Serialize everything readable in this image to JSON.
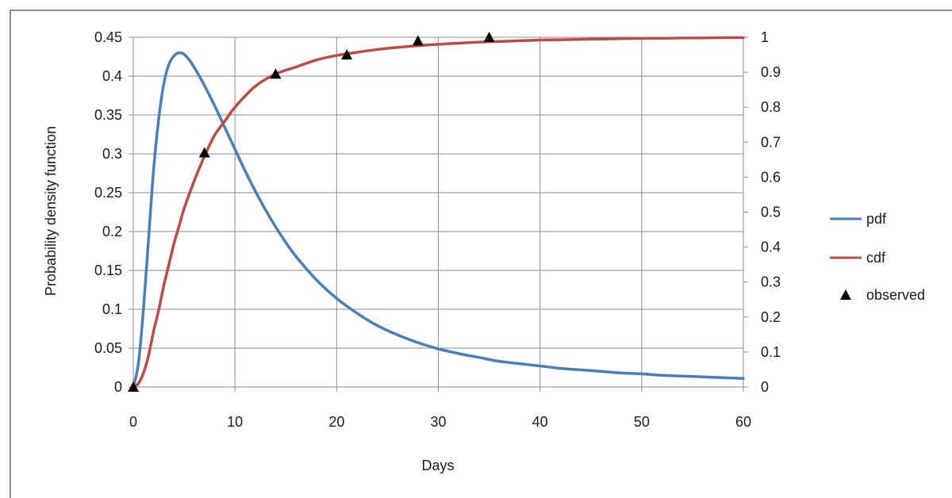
{
  "chart_data": {
    "type": "line",
    "title": "",
    "xlabel": "Days",
    "ylabel": "Probability density function",
    "y2label": "",
    "xlim": [
      0,
      60
    ],
    "ylim": [
      0,
      0.45
    ],
    "y2lim": [
      0,
      1
    ],
    "xticks": [
      "0",
      "10",
      "20",
      "30",
      "40",
      "50",
      "60"
    ],
    "yticks": [
      "0",
      "0.05",
      "0.1",
      "0.15",
      "0.2",
      "0.25",
      "0.3",
      "0.35",
      "0.4",
      "0.45"
    ],
    "y2ticks": [
      "0",
      "0.1",
      "0.2",
      "0.3",
      "0.4",
      "0.5",
      "0.6",
      "0.7",
      "0.8",
      "0.9",
      "1"
    ],
    "grid": true,
    "legend_position": "right",
    "series": [
      {
        "name": "pdf",
        "axis": "left",
        "kind": "line",
        "color": "#4a7ebb",
        "x": [
          0,
          0.5,
          1,
          1.5,
          2,
          2.5,
          3,
          3.5,
          4,
          4.5,
          5,
          5.5,
          6,
          6.5,
          7,
          8,
          9,
          10,
          11,
          12,
          13,
          14,
          15,
          16,
          18,
          20,
          22,
          24,
          26,
          28,
          30,
          32,
          34,
          36,
          38,
          40,
          42,
          44,
          46,
          48,
          50,
          52,
          54,
          56,
          58,
          60
        ],
        "y": [
          0,
          0.03,
          0.1,
          0.19,
          0.28,
          0.345,
          0.39,
          0.415,
          0.426,
          0.43,
          0.428,
          0.421,
          0.411,
          0.4,
          0.388,
          0.362,
          0.334,
          0.306,
          0.278,
          0.252,
          0.228,
          0.206,
          0.186,
          0.168,
          0.138,
          0.114,
          0.095,
          0.079,
          0.067,
          0.057,
          0.049,
          0.043,
          0.038,
          0.033,
          0.03,
          0.027,
          0.024,
          0.022,
          0.02,
          0.018,
          0.017,
          0.015,
          0.014,
          0.013,
          0.012,
          0.011
        ]
      },
      {
        "name": "cdf",
        "axis": "right",
        "kind": "line",
        "color": "#be4b48",
        "x": [
          0,
          0.5,
          1,
          1.5,
          2,
          2.5,
          3,
          3.5,
          4,
          4.5,
          5,
          6,
          7,
          8,
          9,
          10,
          12,
          14,
          16,
          18,
          20,
          22,
          24,
          26,
          28,
          30,
          32,
          34,
          36,
          38,
          40,
          42,
          44,
          46,
          48,
          50,
          52,
          54,
          56,
          58,
          60
        ],
        "y": [
          0,
          0.01,
          0.04,
          0.09,
          0.16,
          0.22,
          0.29,
          0.35,
          0.41,
          0.46,
          0.51,
          0.59,
          0.66,
          0.72,
          0.76,
          0.8,
          0.86,
          0.895,
          0.915,
          0.935,
          0.948,
          0.957,
          0.965,
          0.971,
          0.976,
          0.98,
          0.983,
          0.986,
          0.988,
          0.99,
          0.992,
          0.993,
          0.994,
          0.995,
          0.996,
          0.997,
          0.997,
          0.998,
          0.998,
          0.999,
          0.999
        ]
      },
      {
        "name": "observed",
        "axis": "right",
        "kind": "scatter",
        "marker": "triangle",
        "color": "#000000",
        "x": [
          0,
          7,
          14,
          21,
          28,
          35
        ],
        "y": [
          0,
          0.67,
          0.895,
          0.95,
          0.99,
          1.0
        ]
      }
    ]
  }
}
